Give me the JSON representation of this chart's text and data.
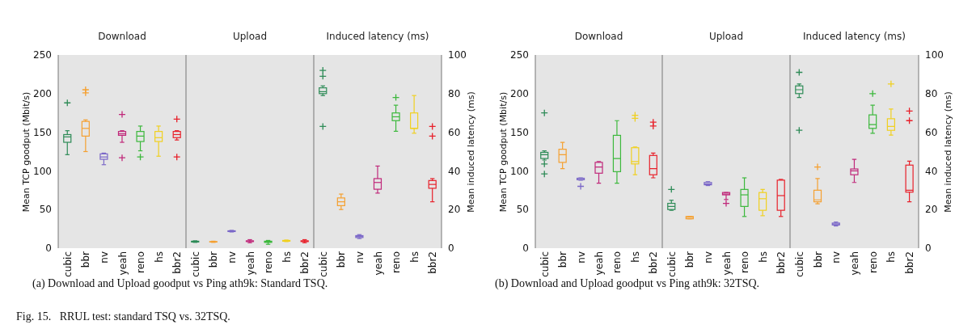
{
  "chart_data": [
    {
      "type": "box",
      "title": "Download",
      "ylabel": "Mean TCP goodput (Mbit/s)",
      "categories": [
        "cubic",
        "bbr",
        "nv",
        "yeah",
        "reno",
        "hs",
        "bbr2"
      ],
      "colors": [
        "#2e8b57",
        "#f5a030",
        "#7b68c8",
        "#c0287a",
        "#3cb83c",
        "#f0d020",
        "#e8202a"
      ],
      "ylim": [
        0,
        250
      ],
      "yticks": [
        0,
        50,
        100,
        150,
        200,
        250
      ],
      "annotations": [
        "(a) Download and Upload goodput vs Ping ath9k: Standard TSQ.",
        "Fig. 15.   RRUL test: standard TSQ vs. 32TSQ."
      ],
      "boxes": [
        {
          "low": 121,
          "q1": 137,
          "median": 144,
          "q3": 147,
          "high": 152,
          "outliers": [
            188
          ]
        },
        {
          "low": 125,
          "q1": 145,
          "median": 155,
          "q3": 164,
          "high": 166,
          "outliers": [
            201,
            205
          ]
        },
        {
          "low": 108,
          "q1": 115,
          "median": 118,
          "q3": 122,
          "high": 123
        },
        {
          "low": 137,
          "q1": 146,
          "median": 148,
          "q3": 151,
          "high": 152,
          "outliers": [
            173,
            117
          ]
        },
        {
          "low": 126,
          "q1": 138,
          "median": 145,
          "q3": 151,
          "high": 158,
          "outliers": [
            118
          ]
        },
        {
          "low": 119,
          "q1": 138,
          "median": 143,
          "q3": 151,
          "high": 158
        },
        {
          "low": 140,
          "q1": 143,
          "median": 147,
          "q3": 151,
          "high": 152,
          "outliers": [
            167,
            118
          ]
        }
      ]
    },
    {
      "type": "box",
      "title": "Upload",
      "categories": [
        "cubic",
        "bbr",
        "nv",
        "yeah",
        "reno",
        "hs",
        "bbr2"
      ],
      "colors": [
        "#2e8b57",
        "#f5a030",
        "#7b68c8",
        "#c0287a",
        "#3cb83c",
        "#f0d020",
        "#e8202a"
      ],
      "ylim": [
        0,
        250
      ],
      "tick_labels": "x",
      "boxes": [
        {
          "low": 7.5,
          "q1": 8,
          "median": 8.5,
          "q3": 9,
          "high": 9.5
        },
        {
          "low": 7.5,
          "q1": 8,
          "median": 8,
          "q3": 8.5,
          "high": 9
        },
        {
          "low": 21,
          "q1": 21.5,
          "median": 22,
          "q3": 22.5,
          "high": 23
        },
        {
          "low": 7,
          "q1": 8.5,
          "median": 9,
          "q3": 9.5,
          "high": 11
        },
        {
          "low": 5,
          "q1": 7.5,
          "median": 8,
          "q3": 9,
          "high": 10
        },
        {
          "low": 8.5,
          "q1": 9,
          "median": 9.5,
          "q3": 10,
          "high": 10.5
        },
        {
          "low": 7,
          "q1": 8.5,
          "median": 9,
          "q3": 9.5,
          "high": 11
        }
      ]
    },
    {
      "type": "box",
      "title": "Induced latency (ms)",
      "y2label": "Mean induced latency (ms)",
      "categories": [
        "cubic",
        "bbr",
        "nv",
        "yeah",
        "reno",
        "hs",
        "bbr2"
      ],
      "y2lim": [
        0,
        100
      ],
      "y2ticks": [
        0,
        20,
        40,
        60,
        80,
        100
      ],
      "series": [
        {
          "axis": "y2",
          "colors": [
            "#2e8b57",
            "#f5a030",
            "#7b68c8",
            "#c0287a",
            "#3cb83c",
            "#f0d020",
            "#e8202a"
          ],
          "boxes": [
            {
              "low": 79,
              "q1": 80,
              "median": 81,
              "q3": 83,
              "high": 84,
              "outliers": [
                92,
                89,
                63
              ]
            },
            {
              "low": 20,
              "q1": 22,
              "median": 24,
              "q3": 26,
              "high": 28
            },
            {
              "low": 5,
              "q1": 5.5,
              "median": 6,
              "q3": 6.5,
              "high": 7
            },
            {
              "low": 28.5,
              "q1": 30.5,
              "median": 34,
              "q3": 36,
              "high": 42.5
            },
            {
              "low": 60.5,
              "q1": 66,
              "median": 68,
              "q3": 70,
              "high": 74,
              "outliers": [
                78
              ]
            },
            {
              "low": 59.5,
              "q1": 62,
              "median": 62,
              "q3": 70,
              "high": 79
            },
            {
              "low": 24,
              "q1": 31,
              "median": 33,
              "q3": 35,
              "high": 36,
              "outliers": [
                63,
                58
              ]
            }
          ]
        }
      ]
    },
    {
      "type": "box",
      "title": "Download",
      "ylabel": "Mean TCP goodput (Mbit/s)",
      "categories": [
        "cubic",
        "bbr",
        "nv",
        "yeah",
        "reno",
        "hs",
        "bbr2"
      ],
      "colors": [
        "#2e8b57",
        "#f5a030",
        "#7b68c8",
        "#c0287a",
        "#3cb83c",
        "#f0d020",
        "#e8202a"
      ],
      "ylim": [
        0,
        250
      ],
      "yticks": [
        0,
        50,
        100,
        150,
        200,
        250
      ],
      "annotations": [
        "(b) Download and Upload goodput vs Ping ath9k: 32TSQ."
      ],
      "boxes": [
        {
          "low": 114,
          "q1": 116,
          "median": 121,
          "q3": 124,
          "high": 126,
          "outliers": [
            175,
            109,
            96
          ]
        },
        {
          "low": 103,
          "q1": 111,
          "median": 121,
          "q3": 128,
          "high": 137
        },
        {
          "low": 88,
          "q1": 88.5,
          "median": 90,
          "q3": 90.5,
          "high": 91,
          "outliers": [
            80
          ]
        },
        {
          "low": 84,
          "q1": 97,
          "median": 105,
          "q3": 111,
          "high": 112
        },
        {
          "low": 84,
          "q1": 99,
          "median": 116,
          "q3": 146,
          "high": 165
        },
        {
          "low": 95,
          "q1": 109,
          "median": 112,
          "q3": 130,
          "high": 131,
          "outliers": [
            172,
            168
          ]
        },
        {
          "low": 91,
          "q1": 95,
          "median": 103,
          "q3": 120,
          "high": 123,
          "outliers": [
            163,
            158
          ]
        }
      ]
    },
    {
      "type": "box",
      "title": "Upload",
      "categories": [
        "cubic",
        "bbr",
        "nv",
        "yeah",
        "reno",
        "hs",
        "bbr2"
      ],
      "colors": [
        "#2e8b57",
        "#f5a030",
        "#7b68c8",
        "#c0287a",
        "#3cb83c",
        "#f0d020",
        "#e8202a"
      ],
      "ylim": [
        0,
        250
      ],
      "tick_labels": "x",
      "boxes": [
        {
          "low": 49,
          "q1": 50,
          "median": 54,
          "q3": 58,
          "high": 62,
          "outliers": [
            76
          ]
        },
        {
          "low": 38,
          "q1": 38,
          "median": 40,
          "q3": 41,
          "high": 41
        },
        {
          "low": 81,
          "q1": 82,
          "median": 83,
          "q3": 85,
          "high": 86
        },
        {
          "low": 63,
          "q1": 69,
          "median": 70,
          "q3": 72,
          "high": 72,
          "outliers": [
            58
          ]
        },
        {
          "low": 41,
          "q1": 54,
          "median": 69,
          "q3": 76,
          "high": 91
        },
        {
          "low": 42,
          "q1": 49,
          "median": 64,
          "q3": 72,
          "high": 76
        },
        {
          "low": 41,
          "q1": 49,
          "median": 68,
          "q3": 88,
          "high": 89
        }
      ]
    },
    {
      "type": "box",
      "title": "Induced latency (ms)",
      "y2label": "Mean induced latency (ms)",
      "categories": [
        "cubic",
        "bbr",
        "nv",
        "yeah",
        "reno",
        "hs",
        "bbr2"
      ],
      "y2lim": [
        0,
        100
      ],
      "y2ticks": [
        0,
        20,
        40,
        60,
        80,
        100
      ],
      "series": [
        {
          "axis": "y2",
          "colors": [
            "#2e8b57",
            "#f5a030",
            "#7b68c8",
            "#c0287a",
            "#3cb83c",
            "#f0d020",
            "#e8202a"
          ],
          "boxes": [
            {
              "low": 78,
              "q1": 80,
              "median": 82,
              "q3": 84,
              "high": 85,
              "outliers": [
                91,
                61
              ]
            },
            {
              "low": 23,
              "q1": 24,
              "median": 25,
              "q3": 30,
              "high": 36,
              "outliers": [
                42
              ]
            },
            {
              "low": 11.5,
              "q1": 12,
              "median": 12.5,
              "q3": 13,
              "high": 13.5
            },
            {
              "low": 34,
              "q1": 38,
              "median": 40,
              "q3": 41,
              "high": 46
            },
            {
              "low": 59.5,
              "q1": 62,
              "median": 64,
              "q3": 69,
              "high": 74,
              "outliers": [
                80
              ]
            },
            {
              "low": 58.5,
              "q1": 61,
              "median": 63,
              "q3": 67,
              "high": 72,
              "outliers": [
                85
              ]
            },
            {
              "low": 24,
              "q1": 29,
              "median": 30,
              "q3": 43,
              "high": 45,
              "outliers": [
                71,
                66
              ]
            }
          ]
        }
      ]
    }
  ]
}
